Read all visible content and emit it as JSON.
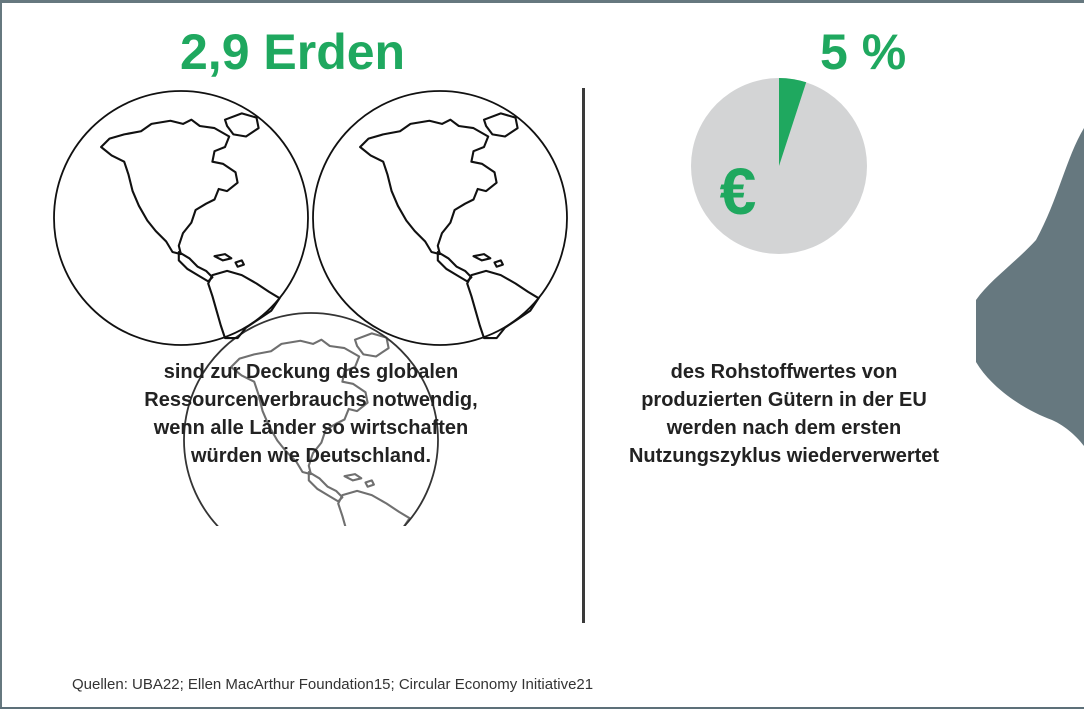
{
  "left_stat": {
    "value": "2,9 Erden",
    "description": [
      "sind zur Deckung des globalen",
      "Ressourcenverbrauchs notwendig,",
      "wenn alle Länder so wirtschaften",
      "würden wie Deutschland."
    ],
    "globe_icons": [
      "globe-icon",
      "globe-icon",
      "partial-globe-icon"
    ],
    "earths_count": 2.9
  },
  "right_stat": {
    "value": "5 %",
    "description": [
      "des Rohstoffwertes von",
      "produzierten Gütern in der EU",
      "werden nach dem ersten",
      "Nutzungszyklus wiederverwertet"
    ],
    "pie_share": 0.05,
    "currency_symbol": "€"
  },
  "sources": "Quellen: UBA22; Ellen MacArthur Foundation15; Circular Economy Initiative21",
  "colors": {
    "accent": "#1fa85f",
    "pie_background": "#d3d4d5",
    "side_blob": "#66787f",
    "text": "#222222"
  }
}
